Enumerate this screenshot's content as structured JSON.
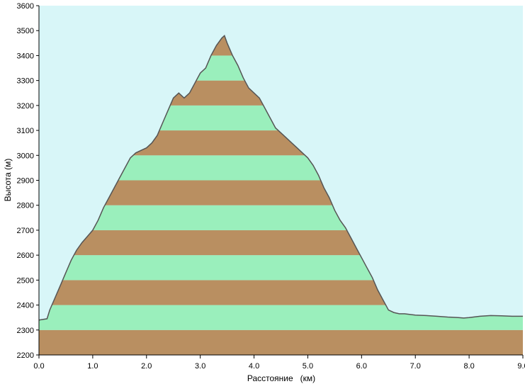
{
  "chart_data": {
    "type": "area",
    "xlabel": "Расстояние   (км)",
    "ylabel": "Высота (м)",
    "xlim": [
      0.0,
      9.0
    ],
    "ylim": [
      2200,
      3600
    ],
    "x_ticks": [
      "0.0",
      "1.0",
      "2.0",
      "3.0",
      "4.0",
      "5.0",
      "6.0",
      "7.0",
      "8.0",
      "9.0"
    ],
    "y_ticks": [
      "2200",
      "2300",
      "2400",
      "2500",
      "2600",
      "2700",
      "2800",
      "2900",
      "3000",
      "3100",
      "3200",
      "3300",
      "3400",
      "3500",
      "3600"
    ],
    "band_step": 100,
    "grid": false,
    "colors": {
      "sky": "#d8f6f8",
      "band_brown": "#b98f61",
      "band_green": "#9aefbc",
      "profile_line": "#555555",
      "axis": "#000000"
    },
    "series": [
      {
        "x": [
          0.0,
          0.15,
          0.2,
          0.3,
          0.4,
          0.5,
          0.6,
          0.7,
          0.8,
          0.9,
          1.0,
          1.1,
          1.2,
          1.3,
          1.4,
          1.5,
          1.6,
          1.7,
          1.8,
          1.9,
          2.0,
          2.1,
          2.2,
          2.3,
          2.4,
          2.5,
          2.6,
          2.7,
          2.8,
          2.9,
          3.0,
          3.1,
          3.2,
          3.3,
          3.4,
          3.45,
          3.5,
          3.6,
          3.7,
          3.8,
          3.9,
          4.0,
          4.1,
          4.2,
          4.3,
          4.4,
          4.5,
          4.6,
          4.7,
          4.8,
          4.9,
          5.0,
          5.1,
          5.2,
          5.3,
          5.4,
          5.5,
          5.6,
          5.7,
          5.8,
          5.9,
          6.0,
          6.1,
          6.2,
          6.3,
          6.4,
          6.5,
          6.6,
          6.7,
          6.8,
          7.0,
          7.2,
          7.4,
          7.6,
          7.8,
          7.9,
          8.0,
          8.2,
          8.4,
          8.6,
          8.8,
          9.0
        ],
        "y": [
          2340,
          2345,
          2380,
          2430,
          2480,
          2530,
          2580,
          2620,
          2650,
          2675,
          2700,
          2740,
          2790,
          2830,
          2870,
          2910,
          2950,
          2990,
          3010,
          3020,
          3030,
          3050,
          3080,
          3130,
          3180,
          3230,
          3250,
          3230,
          3250,
          3290,
          3330,
          3350,
          3400,
          3440,
          3470,
          3480,
          3450,
          3400,
          3360,
          3310,
          3270,
          3250,
          3230,
          3190,
          3150,
          3110,
          3090,
          3070,
          3050,
          3030,
          3010,
          2990,
          2960,
          2920,
          2870,
          2830,
          2780,
          2740,
          2710,
          2670,
          2630,
          2590,
          2550,
          2510,
          2460,
          2420,
          2380,
          2370,
          2365,
          2365,
          2360,
          2358,
          2355,
          2352,
          2350,
          2348,
          2350,
          2355,
          2358,
          2357,
          2355,
          2355
        ]
      }
    ]
  }
}
